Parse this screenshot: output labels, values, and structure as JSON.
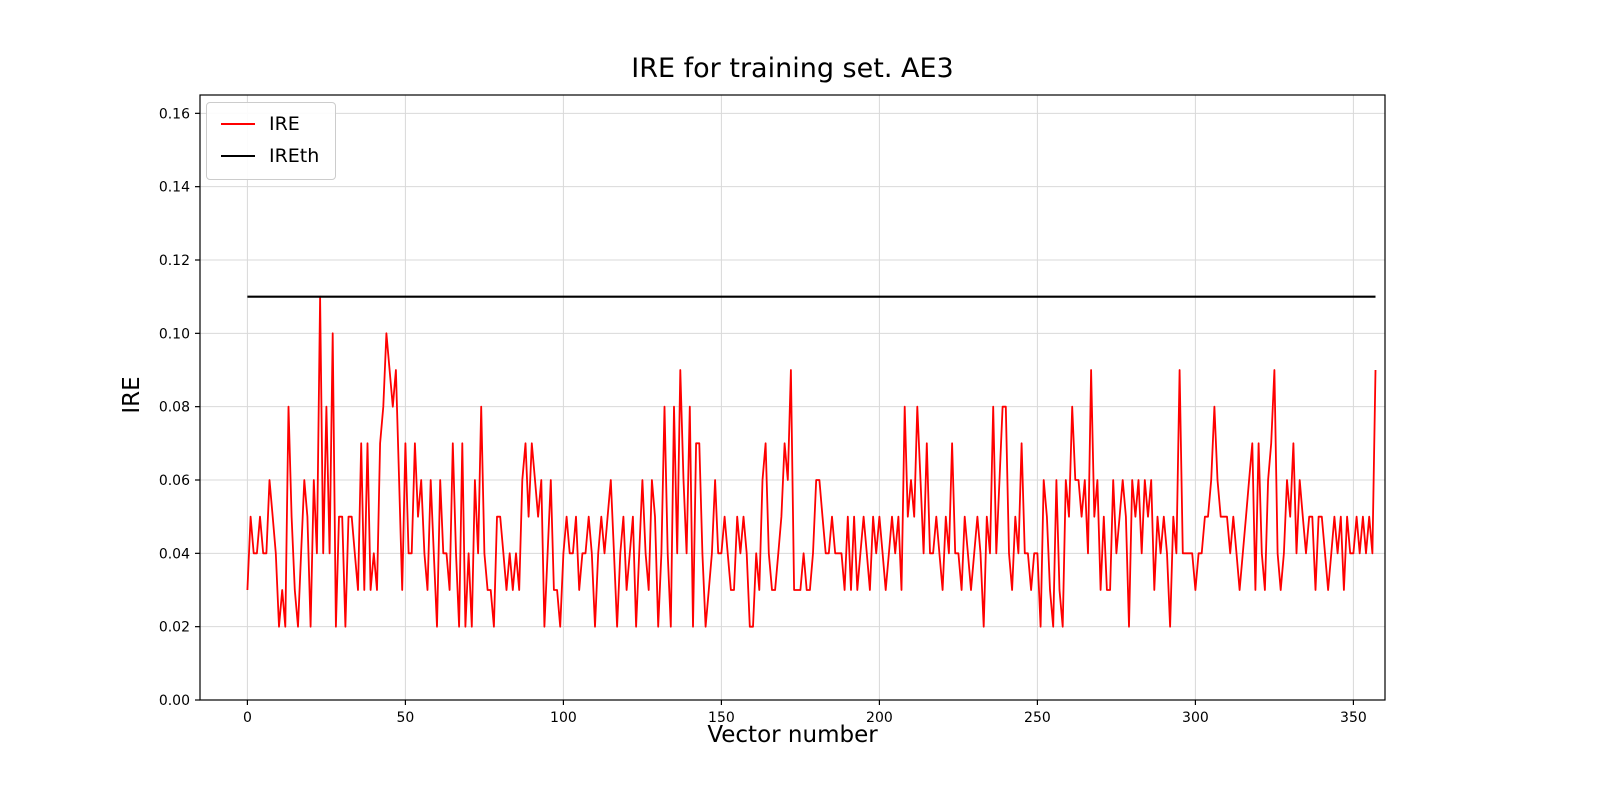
{
  "figure": {
    "background": "#ffffff",
    "grid_color": "#d9d9d9",
    "spine_color": "#000000"
  },
  "chart_data": {
    "type": "line",
    "title": "IRE for training set. AE3",
    "xlabel": "Vector number",
    "ylabel": "IRE",
    "xlim": [
      -15,
      360
    ],
    "ylim": [
      0,
      0.165
    ],
    "x_ticks": [
      0,
      50,
      100,
      150,
      200,
      250,
      300,
      350
    ],
    "y_ticks": [
      0.0,
      0.02,
      0.04,
      0.06,
      0.08,
      0.1,
      0.12,
      0.14,
      0.16
    ],
    "grid": true,
    "legend_position": "upper left",
    "threshold_value": 0.11,
    "series": [
      {
        "name": "IRE",
        "color": "#ff0000",
        "width": 1.8,
        "values": [
          0.03,
          0.05,
          0.04,
          0.04,
          0.05,
          0.04,
          0.04,
          0.06,
          0.05,
          0.04,
          0.02,
          0.03,
          0.02,
          0.08,
          0.05,
          0.03,
          0.02,
          0.04,
          0.06,
          0.05,
          0.02,
          0.06,
          0.04,
          0.11,
          0.04,
          0.08,
          0.04,
          0.1,
          0.02,
          0.05,
          0.05,
          0.02,
          0.05,
          0.05,
          0.04,
          0.03,
          0.07,
          0.03,
          0.07,
          0.03,
          0.04,
          0.03,
          0.07,
          0.08,
          0.1,
          0.09,
          0.08,
          0.09,
          0.06,
          0.03,
          0.07,
          0.04,
          0.04,
          0.07,
          0.05,
          0.06,
          0.04,
          0.03,
          0.06,
          0.04,
          0.02,
          0.06,
          0.04,
          0.04,
          0.03,
          0.07,
          0.04,
          0.02,
          0.07,
          0.02,
          0.04,
          0.02,
          0.06,
          0.04,
          0.08,
          0.04,
          0.03,
          0.03,
          0.02,
          0.05,
          0.05,
          0.04,
          0.03,
          0.04,
          0.03,
          0.04,
          0.03,
          0.06,
          0.07,
          0.05,
          0.07,
          0.06,
          0.05,
          0.06,
          0.02,
          0.04,
          0.06,
          0.03,
          0.03,
          0.02,
          0.04,
          0.05,
          0.04,
          0.04,
          0.05,
          0.03,
          0.04,
          0.04,
          0.05,
          0.04,
          0.02,
          0.04,
          0.05,
          0.04,
          0.05,
          0.06,
          0.04,
          0.02,
          0.04,
          0.05,
          0.03,
          0.04,
          0.05,
          0.02,
          0.04,
          0.06,
          0.04,
          0.03,
          0.06,
          0.05,
          0.02,
          0.04,
          0.08,
          0.04,
          0.02,
          0.08,
          0.04,
          0.09,
          0.06,
          0.04,
          0.08,
          0.02,
          0.07,
          0.07,
          0.04,
          0.02,
          0.03,
          0.04,
          0.06,
          0.04,
          0.04,
          0.05,
          0.04,
          0.03,
          0.03,
          0.05,
          0.04,
          0.05,
          0.04,
          0.02,
          0.02,
          0.04,
          0.03,
          0.06,
          0.07,
          0.04,
          0.03,
          0.03,
          0.04,
          0.05,
          0.07,
          0.06,
          0.09,
          0.03,
          0.03,
          0.03,
          0.04,
          0.03,
          0.03,
          0.04,
          0.06,
          0.06,
          0.05,
          0.04,
          0.04,
          0.05,
          0.04,
          0.04,
          0.04,
          0.03,
          0.05,
          0.03,
          0.05,
          0.03,
          0.04,
          0.05,
          0.04,
          0.03,
          0.05,
          0.04,
          0.05,
          0.04,
          0.03,
          0.04,
          0.05,
          0.04,
          0.05,
          0.03,
          0.08,
          0.05,
          0.06,
          0.05,
          0.08,
          0.06,
          0.04,
          0.07,
          0.04,
          0.04,
          0.05,
          0.04,
          0.03,
          0.05,
          0.04,
          0.07,
          0.04,
          0.04,
          0.03,
          0.05,
          0.04,
          0.03,
          0.04,
          0.05,
          0.04,
          0.02,
          0.05,
          0.04,
          0.08,
          0.04,
          0.06,
          0.08,
          0.08,
          0.04,
          0.03,
          0.05,
          0.04,
          0.07,
          0.04,
          0.04,
          0.03,
          0.04,
          0.04,
          0.02,
          0.06,
          0.05,
          0.03,
          0.02,
          0.06,
          0.03,
          0.02,
          0.06,
          0.05,
          0.08,
          0.06,
          0.06,
          0.05,
          0.06,
          0.04,
          0.09,
          0.05,
          0.06,
          0.03,
          0.05,
          0.03,
          0.03,
          0.06,
          0.04,
          0.05,
          0.06,
          0.05,
          0.02,
          0.06,
          0.05,
          0.06,
          0.04,
          0.06,
          0.05,
          0.06,
          0.03,
          0.05,
          0.04,
          0.05,
          0.04,
          0.02,
          0.05,
          0.04,
          0.09,
          0.04,
          0.04,
          0.04,
          0.04,
          0.03,
          0.04,
          0.04,
          0.05,
          0.05,
          0.06,
          0.08,
          0.06,
          0.05,
          0.05,
          0.05,
          0.04,
          0.05,
          0.04,
          0.03,
          0.04,
          0.05,
          0.06,
          0.07,
          0.03,
          0.07,
          0.04,
          0.03,
          0.06,
          0.07,
          0.09,
          0.04,
          0.03,
          0.04,
          0.06,
          0.05,
          0.07,
          0.04,
          0.06,
          0.05,
          0.04,
          0.05,
          0.05,
          0.03,
          0.05,
          0.05,
          0.04,
          0.03,
          0.04,
          0.05,
          0.04,
          0.05,
          0.03,
          0.05,
          0.04,
          0.04,
          0.05,
          0.04,
          0.05,
          0.04,
          0.05,
          0.04,
          0.09
        ]
      },
      {
        "name": "IREth",
        "color": "#000000",
        "width": 2.2,
        "x": [
          0,
          357
        ],
        "values": [
          0.11,
          0.11
        ]
      }
    ]
  }
}
